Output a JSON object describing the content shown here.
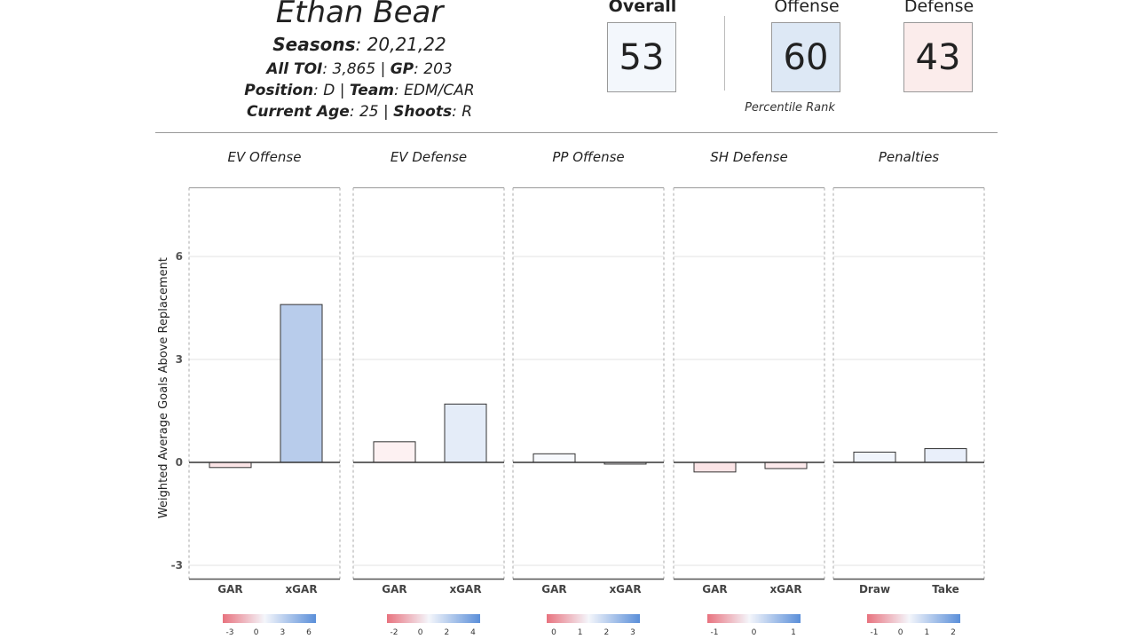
{
  "player": {
    "name": "Ethan Bear",
    "seasons_label": "Seasons",
    "seasons": ": 20,21,22",
    "toi_label": "All TOI",
    "toi": ": 3,865 | ",
    "gp_label": "GP",
    "gp": ": 203",
    "position_label": "Position",
    "position": ": D | ",
    "team_label": "Team",
    "team": ": EDM/CAR",
    "age_label": "Current Age",
    "age": ": 25 | ",
    "shoots_label": "Shoots",
    "shoots": ": R"
  },
  "ratings": {
    "overall_label": "Overall",
    "overall": "53",
    "overall_color": "#f3f7fc",
    "offense_label": "Offense",
    "offense": "60",
    "offense_color": "#dde8f5",
    "defense_label": "Defense",
    "defense": "43",
    "defense_color": "#fbeceb",
    "caption": "Percentile Rank"
  },
  "chart_data": {
    "type": "bar",
    "ylabel": "Weighted Average Goals Above Replacement",
    "ylim": [
      -3.4,
      8.0
    ],
    "yticks": [
      -3,
      0,
      3,
      6
    ],
    "grid": true,
    "panels": [
      {
        "title": "EV Offense",
        "categories": [
          "GAR",
          "xGAR"
        ],
        "values": [
          -0.15,
          4.6
        ],
        "colors": [
          "#fbe4e6",
          "#b8cceb"
        ],
        "legend": {
          "ticks": [
            "-3",
            "0",
            "3",
            "6"
          ]
        }
      },
      {
        "title": "EV Defense",
        "categories": [
          "GAR",
          "xGAR"
        ],
        "values": [
          0.6,
          1.7
        ],
        "colors": [
          "#fdf1f2",
          "#e4ecf8"
        ],
        "legend": {
          "ticks": [
            "-2",
            "0",
            "2",
            "4"
          ]
        }
      },
      {
        "title": "PP Offense",
        "categories": [
          "GAR",
          "xGAR"
        ],
        "values": [
          0.25,
          -0.05
        ],
        "colors": [
          "#f7f9fd",
          "#fdfbfc"
        ],
        "legend": {
          "ticks": [
            "0",
            "1",
            "2",
            "3"
          ]
        }
      },
      {
        "title": "SH Defense",
        "categories": [
          "GAR",
          "xGAR"
        ],
        "values": [
          -0.28,
          -0.18
        ],
        "colors": [
          "#fbe4e6",
          "#fce9eb"
        ],
        "legend": {
          "ticks": [
            "-1",
            "0",
            "1"
          ]
        }
      },
      {
        "title": "Penalties",
        "categories": [
          "Draw",
          "Take"
        ],
        "values": [
          0.3,
          0.4
        ],
        "colors": [
          "#f1f5fc",
          "#e9effa"
        ],
        "legend": {
          "ticks": [
            "-1",
            "0",
            "1",
            "2"
          ]
        }
      }
    ],
    "legend_colors": {
      "negative": "#e8737f",
      "neutral": "#f4f6fb",
      "positive": "#5b8fd9"
    }
  }
}
